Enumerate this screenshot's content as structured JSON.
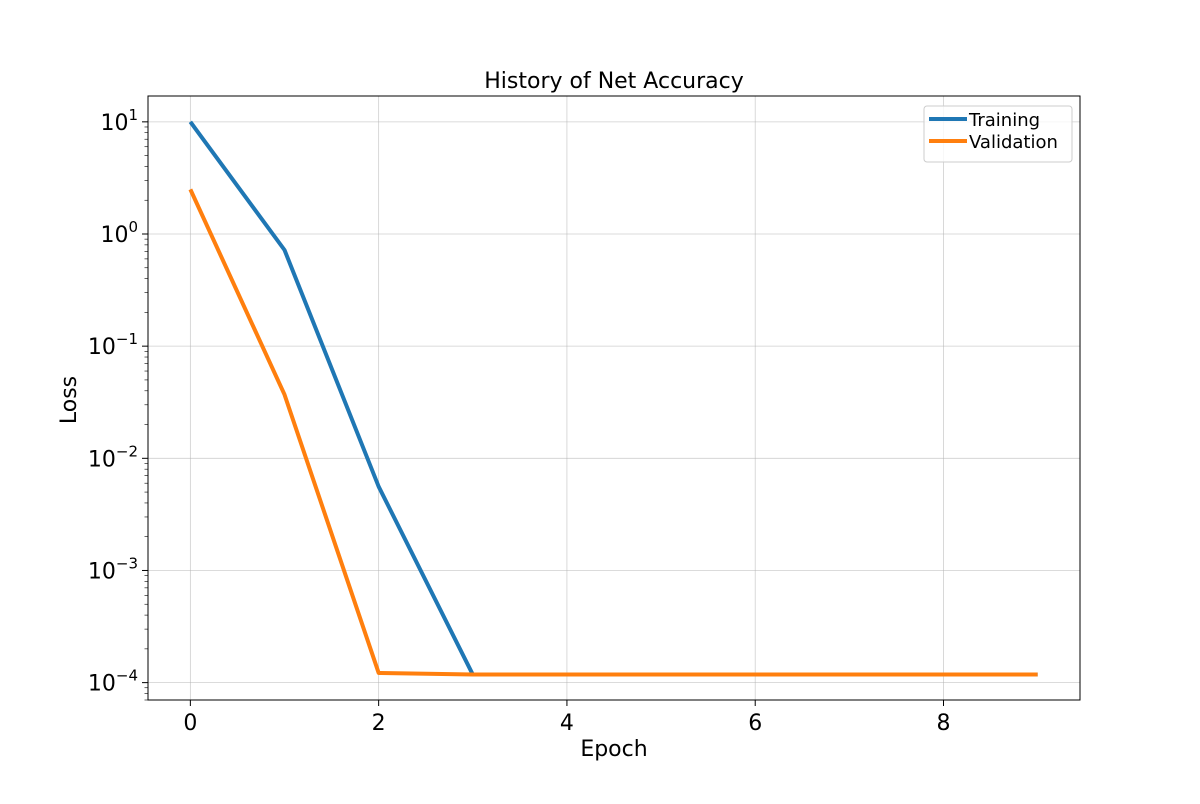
{
  "chart_data": {
    "type": "line",
    "title": "History of Net Accuracy",
    "xlabel": "Epoch",
    "ylabel": "Loss",
    "yscale": "log",
    "xlim": [
      -0.45,
      9.45
    ],
    "ylim": [
      7e-05,
      17
    ],
    "xticks": [
      0,
      2,
      4,
      6,
      8
    ],
    "xtick_labels": [
      "0",
      "2",
      "4",
      "6",
      "8"
    ],
    "yticks": [
      0.0001,
      0.001,
      0.01,
      0.1,
      1,
      10
    ],
    "ytick_base": "10",
    "ytick_exponents": [
      "−4",
      "−3",
      "−2",
      "−1",
      "0",
      "1"
    ],
    "grid": true,
    "legend_position": "top-right",
    "x": [
      0,
      1,
      2,
      3,
      4,
      5,
      6,
      7,
      8,
      9
    ],
    "series": [
      {
        "name": "Training",
        "color": "#1f77b4",
        "values": [
          10,
          0.72,
          0.0056,
          0.000118,
          0.000118,
          0.000118,
          0.000118,
          0.000118,
          0.000118,
          0.000118
        ]
      },
      {
        "name": "Validation",
        "color": "#ff7f0e",
        "values": [
          2.5,
          0.037,
          0.000122,
          0.000118,
          0.000118,
          0.000118,
          0.000118,
          0.000118,
          0.000118,
          0.000118
        ]
      }
    ]
  }
}
